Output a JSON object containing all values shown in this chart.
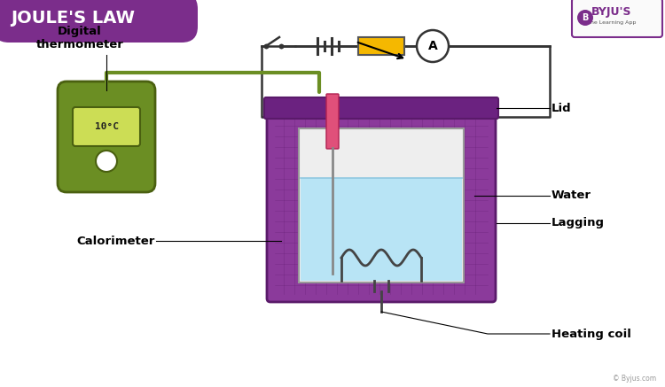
{
  "title": "JOULE'S LAW",
  "title_bg": "#7B2D8B",
  "title_text_color": "#FFFFFF",
  "bg_color": "#FFFFFF",
  "labels": {
    "digital_thermometer": "Digital\nthermometer",
    "calorimeter": "Calorimeter",
    "lid": "Lid",
    "water": "Water",
    "lagging": "Lagging",
    "heating_coil": "Heating coil"
  },
  "colors": {
    "purple": "#8B3A9B",
    "purple_dark": "#5A1A6A",
    "purple_lid": "#6B2280",
    "green_device": "#6B8E23",
    "green_dark": "#4A6010",
    "green_screen": "#CCDD55",
    "water_blue": "#B8E4F5",
    "pink_probe": "#E0507A",
    "yellow_resistor": "#F5B800",
    "wire_color": "#333333",
    "inner_beaker": "#D8D8D8",
    "byju_purple": "#7B2D8B"
  }
}
